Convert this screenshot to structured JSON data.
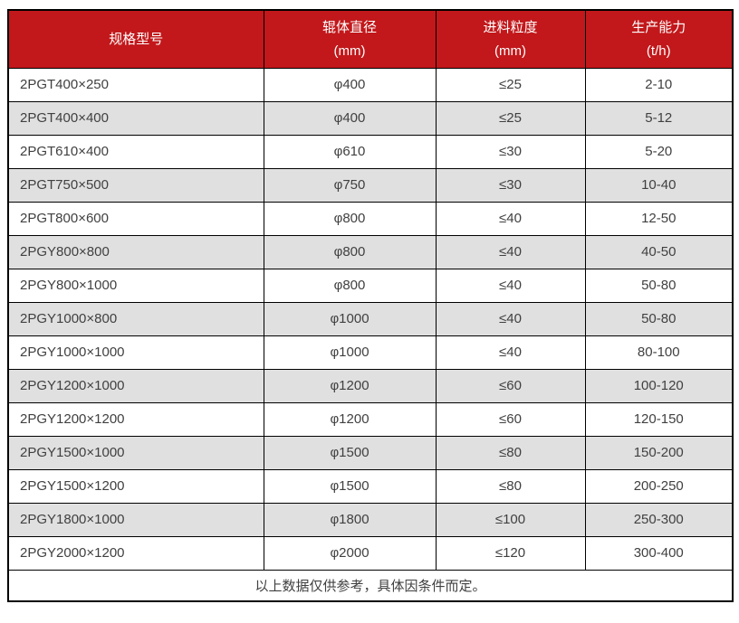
{
  "table": {
    "columns": [
      {
        "title": "规格型号",
        "unit": ""
      },
      {
        "title": "辊体直径",
        "unit": "(mm)"
      },
      {
        "title": "进料粒度",
        "unit": "(mm)"
      },
      {
        "title": "生产能力",
        "unit": "(t/h)"
      }
    ],
    "rows": [
      [
        "2PGT400×250",
        "φ400",
        "≤25",
        "2-10"
      ],
      [
        "2PGT400×400",
        "φ400",
        "≤25",
        "5-12"
      ],
      [
        "2PGT610×400",
        "φ610",
        "≤30",
        "5-20"
      ],
      [
        "2PGT750×500",
        "φ750",
        "≤30",
        "10-40"
      ],
      [
        "2PGT800×600",
        "φ800",
        "≤40",
        "12-50"
      ],
      [
        "2PGY800×800",
        "φ800",
        "≤40",
        "40-50"
      ],
      [
        "2PGY800×1000",
        "φ800",
        "≤40",
        "50-80"
      ],
      [
        "2PGY1000×800",
        "φ1000",
        "≤40",
        "50-80"
      ],
      [
        "2PGY1000×1000",
        "φ1000",
        "≤40",
        "80-100"
      ],
      [
        "2PGY1200×1000",
        "φ1200",
        "≤60",
        "100-120"
      ],
      [
        "2PGY1200×1200",
        "φ1200",
        "≤60",
        "120-150"
      ],
      [
        "2PGY1500×1000",
        "φ1500",
        "≤80",
        "150-200"
      ],
      [
        "2PGY1500×1200",
        "φ1500",
        "≤80",
        "200-250"
      ],
      [
        "2PGY1800×1000",
        "φ1800",
        "≤100",
        "250-300"
      ],
      [
        "2PGY2000×1200",
        "φ2000",
        "≤120",
        "300-400"
      ]
    ],
    "footer_note": "以上数据仅供参考，具体因条件而定。"
  },
  "colors": {
    "header_bg": "#c2181b",
    "header_text": "#ffffff",
    "row_alt_bg": "#e0e0e0",
    "body_text": "#404040",
    "border": "#000000"
  }
}
